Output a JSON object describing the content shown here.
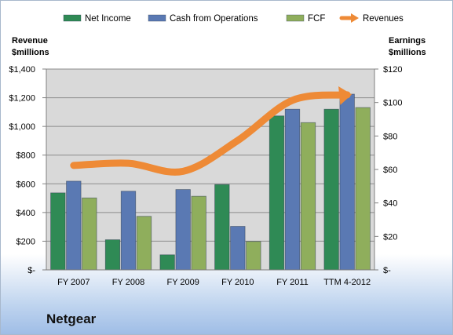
{
  "company": "Netgear",
  "left_axis_title": [
    "Revenue",
    "$millions"
  ],
  "right_axis_title": [
    "Earnings",
    "$millions"
  ],
  "colors": {
    "net_income": "#2f8a55",
    "cash_from_operations": "#5a79b3",
    "fcf": "#8fae5c",
    "revenues": "#ee8a36",
    "plot_bg": "#d9d9d9"
  },
  "chart_data": {
    "type": "bar",
    "categories": [
      "FY 2007",
      "FY 2008",
      "FY 2009",
      "FY 2010",
      "FY 2011",
      "TTM 4-2012"
    ],
    "series": [
      {
        "name": "Net Income",
        "axis": "right",
        "values": [
          46,
          18,
          9,
          51,
          92,
          96
        ]
      },
      {
        "name": "Cash from Operations",
        "axis": "right",
        "values": [
          53,
          47,
          48,
          26,
          96,
          105
        ]
      },
      {
        "name": "FCF",
        "axis": "right",
        "values": [
          43,
          32,
          44,
          17,
          88,
          97
        ]
      },
      {
        "name": "Revenues",
        "type": "line",
        "axis": "left",
        "values": [
          728,
          743,
          687,
          902,
          1182,
          1220
        ]
      }
    ],
    "left_axis": {
      "ylim": [
        0,
        1400
      ],
      "ticks": [
        "$-",
        "$200",
        "$400",
        "$600",
        "$800",
        "$1,000",
        "$1,200",
        "$1,400"
      ]
    },
    "right_axis": {
      "ylim": [
        0,
        120
      ],
      "ticks": [
        "$-",
        "$20",
        "$40",
        "$60",
        "$80",
        "$100",
        "$120"
      ]
    },
    "grid": true,
    "legend_position": "top"
  }
}
